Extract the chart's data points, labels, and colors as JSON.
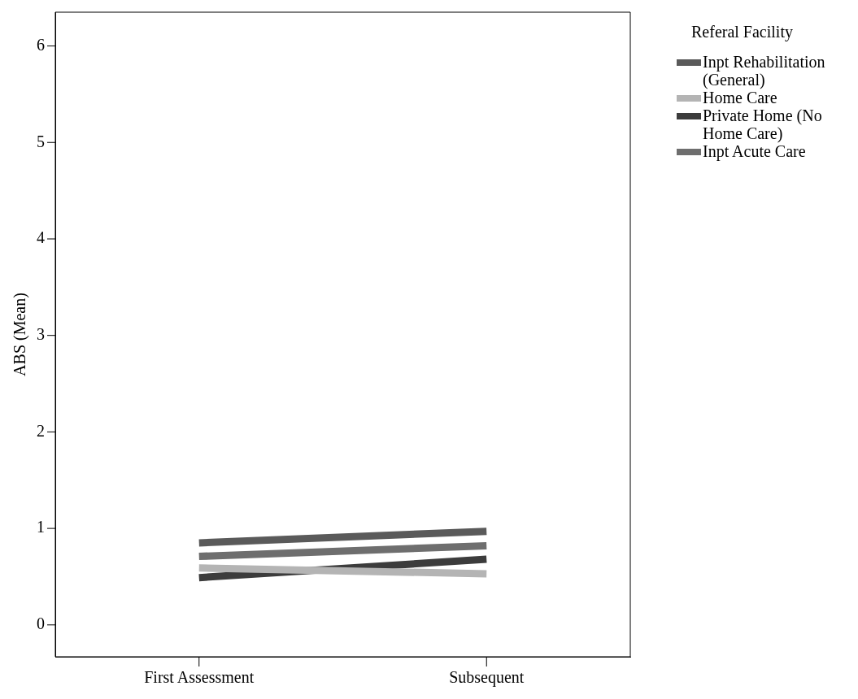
{
  "chart_data": {
    "type": "line",
    "ylabel": "ABS (Mean)",
    "legend_title": "Referal Facility",
    "categories": [
      "First Assessment",
      "Subsequent"
    ],
    "series": [
      {
        "name": "Inpt Rehabilitation (General)",
        "color": "#5a5a5a",
        "values": [
          0.85,
          0.97
        ]
      },
      {
        "name": "Home Care",
        "color": "#b4b4b4",
        "values": [
          0.59,
          0.53
        ]
      },
      {
        "name": "Private Home (No Home Care)",
        "color": "#3c3c3c",
        "values": [
          0.49,
          0.68
        ]
      },
      {
        "name": "Inpt Acute Care",
        "color": "#6e6e6e",
        "values": [
          0.71,
          0.82
        ]
      }
    ],
    "ylim": [
      -0.33,
      6.35
    ],
    "yticks": [
      0,
      1,
      2,
      3,
      4,
      5,
      6
    ],
    "grid": false,
    "legend": "right",
    "marker": "none",
    "line_style": "solid"
  }
}
